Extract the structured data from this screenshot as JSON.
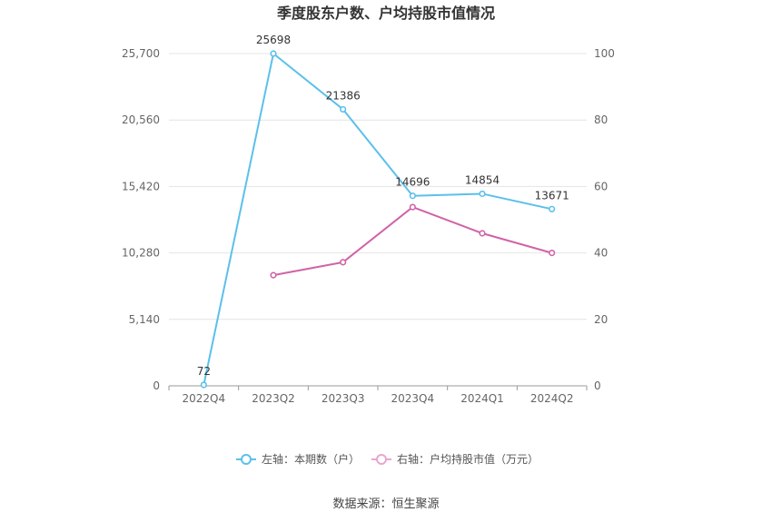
{
  "chart_data": {
    "type": "line",
    "title": "季度股东户数、户均持股市值情况",
    "categories": [
      "2022Q4",
      "2023Q2",
      "2023Q3",
      "2023Q4",
      "2024Q1",
      "2024Q2"
    ],
    "left_axis": {
      "ticks": [
        "0",
        "5,140",
        "10,280",
        "15,420",
        "20,560",
        "25,700"
      ],
      "range": [
        0,
        25700
      ]
    },
    "right_axis": {
      "ticks": [
        "0",
        "20",
        "40",
        "60",
        "80",
        "100"
      ],
      "range": [
        0,
        100
      ]
    },
    "series": [
      {
        "name": "左轴：本期数（户）",
        "axis": "left",
        "color": "#5bc0eb",
        "values": [
          72,
          25698,
          21386,
          14696,
          14854,
          13671
        ],
        "labels": [
          "72",
          "25698",
          "21386",
          "14696",
          "14854",
          "13671"
        ]
      },
      {
        "name": "右轴：户均持股市值（万元）",
        "axis": "right",
        "color": "#d063a8",
        "values": [
          null,
          33.3,
          37.2,
          53.8,
          45.9,
          40.0
        ]
      }
    ],
    "grid": true,
    "legend_position": "bottom"
  },
  "source": "数据来源：恒生聚源"
}
